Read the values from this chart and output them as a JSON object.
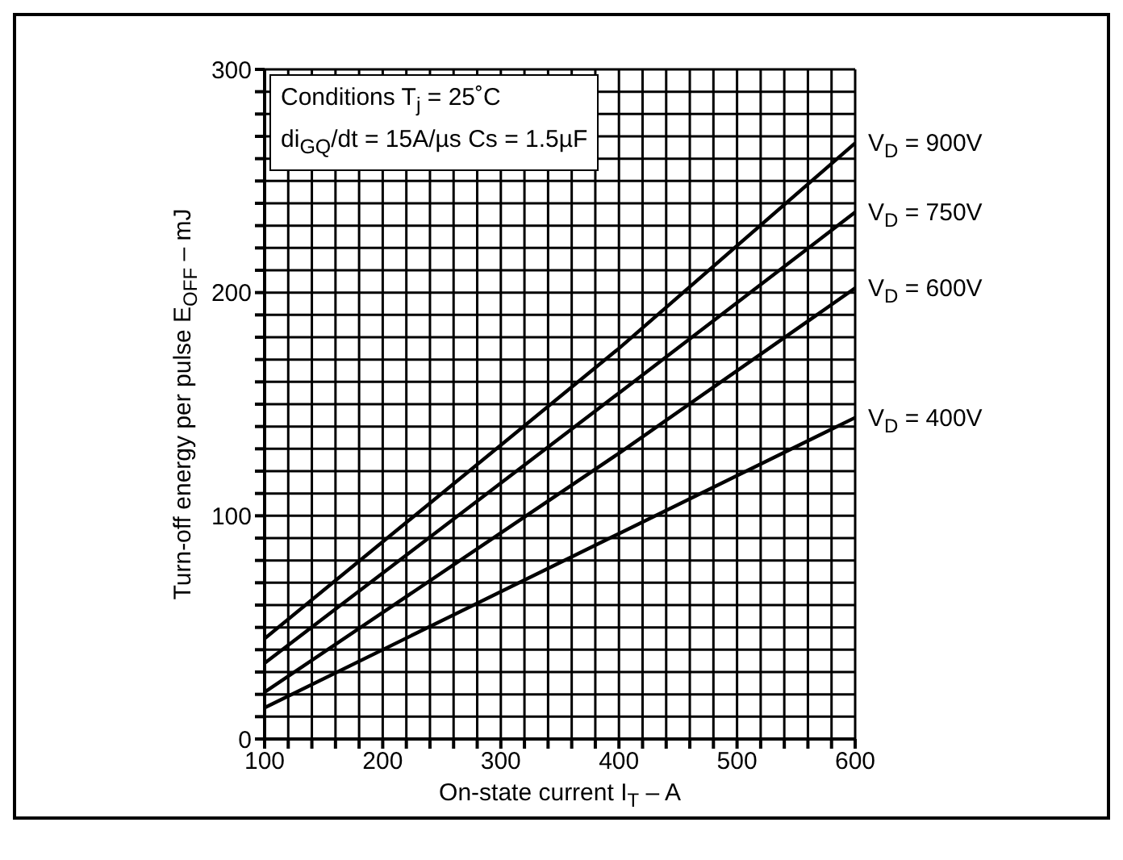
{
  "chart_data": {
    "type": "line",
    "xlabel": "On-state current I$_{T}$ – A",
    "ylabel": "Turn-off energy per pulse E$_{OFF}$ – mJ",
    "annotations": [
      "Conditions T$_{j}$ = 25˚C",
      "di$_{GQ}$/dt = 15A/µs  Cs = 1.5µF"
    ],
    "x": [
      100,
      400,
      600
    ],
    "series": [
      {
        "name": "V$_{D}$ = 900V",
        "color": "#000000",
        "values": [
          45,
          175,
          267
        ]
      },
      {
        "name": "V$_{D}$ = 750V",
        "color": "#000000",
        "values": [
          34,
          155,
          236
        ]
      },
      {
        "name": "V$_{D}$ = 600V",
        "color": "#000000",
        "values": [
          21,
          128,
          202
        ]
      },
      {
        "name": "V$_{D}$ = 400V",
        "color": "#000000",
        "values": [
          14,
          92,
          144
        ]
      }
    ],
    "xlim": [
      100,
      600
    ],
    "xticks": [
      100,
      {
        "value": 120,
        "label": null
      },
      {
        "value": 140,
        "label": null
      },
      {
        "value": 160,
        "label": null
      },
      {
        "value": 180,
        "label": null
      },
      200,
      {
        "value": 220,
        "label": null
      },
      {
        "value": 240,
        "label": null
      },
      {
        "value": 260,
        "label": null
      },
      {
        "value": 280,
        "label": null
      },
      300,
      {
        "value": 320,
        "label": null
      },
      {
        "value": 340,
        "label": null
      },
      {
        "value": 360,
        "label": null
      },
      {
        "value": 380,
        "label": null
      },
      400,
      {
        "value": 420,
        "label": null
      },
      {
        "value": 440,
        "label": null
      },
      {
        "value": 460,
        "label": null
      },
      {
        "value": 480,
        "label": null
      },
      500,
      {
        "value": 520,
        "label": null
      },
      {
        "value": 540,
        "label": null
      },
      {
        "value": 560,
        "label": null
      },
      {
        "value": 580,
        "label": null
      },
      600
    ],
    "ylim": [
      0,
      300
    ],
    "yticks": [
      0,
      {
        "value": 10,
        "label": null
      },
      {
        "value": 20,
        "label": null
      },
      {
        "value": 30,
        "label": null
      },
      {
        "value": 40,
        "label": null
      },
      {
        "value": 50,
        "label": null
      },
      {
        "value": 60,
        "label": null
      },
      {
        "value": 70,
        "label": null
      },
      {
        "value": 80,
        "label": null
      },
      {
        "value": 90,
        "label": null
      },
      100,
      {
        "value": 110,
        "label": null
      },
      {
        "value": 120,
        "label": null
      },
      {
        "value": 130,
        "label": null
      },
      {
        "value": 140,
        "label": null
      },
      {
        "value": 150,
        "label": null
      },
      {
        "value": 160,
        "label": null
      },
      {
        "value": 170,
        "label": null
      },
      {
        "value": 180,
        "label": null
      },
      {
        "value": 190,
        "label": null
      },
      200,
      {
        "value": 210,
        "label": null
      },
      {
        "value": 220,
        "label": null
      },
      {
        "value": 230,
        "label": null
      },
      {
        "value": 240,
        "label": null
      },
      {
        "value": 250,
        "label": null
      },
      {
        "value": 260,
        "label": null
      },
      {
        "value": 270,
        "label": null
      },
      {
        "value": 280,
        "label": null
      },
      {
        "value": 290,
        "label": null
      },
      300
    ],
    "grid": true,
    "marker": "none",
    "line_style": "solid"
  }
}
